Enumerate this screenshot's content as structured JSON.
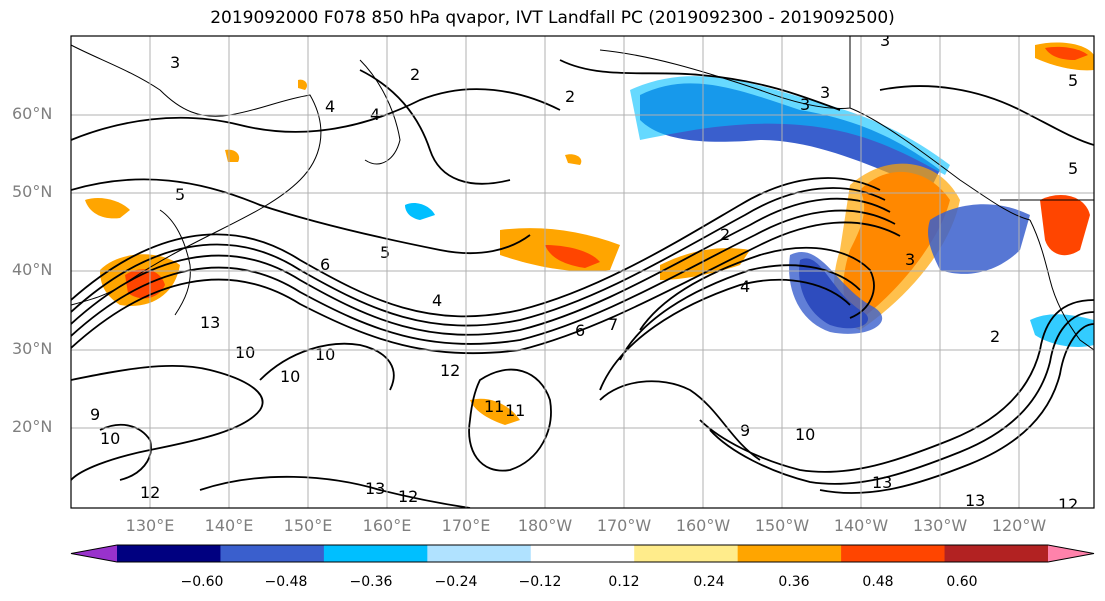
{
  "title": "2019092000 F078 850 hPa qvapor, IVT Landfall PC (2019092300 - 2019092500)",
  "lat_labels": [
    "60°N",
    "50°N",
    "40°N",
    "30°N",
    "20°N"
  ],
  "lon_labels": [
    "130°E",
    "140°E",
    "150°E",
    "160°E",
    "170°E",
    "180°W",
    "170°W",
    "160°W",
    "150°W",
    "140°W",
    "130°W",
    "120°W"
  ],
  "colorbar": {
    "tick_labels": [
      "−0.60",
      "−0.48",
      "−0.36",
      "−0.24",
      "−0.12",
      "0.12",
      "0.24",
      "0.36",
      "0.48",
      "0.60"
    ],
    "colors": [
      "#9932cc",
      "#000080",
      "#3a5fcd",
      "#00bfff",
      "#b0e2ff",
      "#ffffff",
      "#ffec8b",
      "#ffa500",
      "#ff4500",
      "#b22222",
      "#ff82ab"
    ]
  },
  "contour_labels": [
    "3",
    "4",
    "4",
    "2",
    "2",
    "5",
    "5",
    "6",
    "4",
    "3",
    "2",
    "5",
    "3",
    "6",
    "3",
    "7",
    "9",
    "10",
    "12",
    "13",
    "10",
    "13",
    "12",
    "13",
    "12",
    "10",
    "11",
    "10",
    "9",
    "10",
    "11",
    "12",
    "13",
    "4",
    "2",
    "3",
    "5"
  ]
}
